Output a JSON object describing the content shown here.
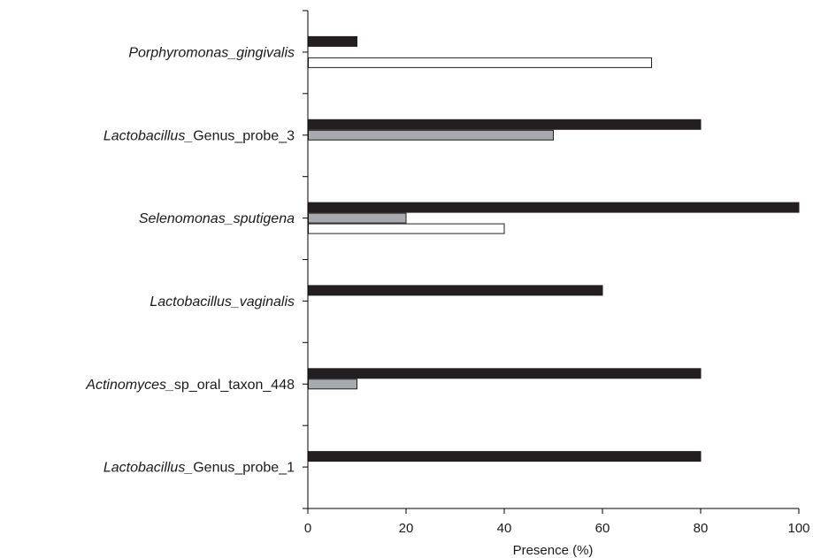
{
  "chart_data": {
    "type": "bar",
    "orientation": "horizontal",
    "xlabel": "Presence (%)",
    "xlim": [
      0,
      100
    ],
    "xticks": [
      "0",
      "20",
      "40",
      "60",
      "80",
      "100"
    ],
    "grid": false,
    "categories": [
      {
        "italic": "Porphyromonas_gingivalis",
        "plain": ""
      },
      {
        "italic": "Lactobacillus_",
        "plain": "Genus_probe_3"
      },
      {
        "italic": "Selenomonas_sputigena",
        "plain": ""
      },
      {
        "italic": "Lactobacillus_vaginalis",
        "plain": ""
      },
      {
        "italic": "Actinomyces_",
        "plain": "sp_oral_taxon_448"
      },
      {
        "italic": "Lactobacillus_",
        "plain": "Genus_probe_1"
      }
    ],
    "series": [
      {
        "color": "#231f20",
        "values": [
          10,
          80,
          100,
          60,
          80,
          80
        ]
      },
      {
        "color": "#a7a9ac",
        "values": [
          0,
          50,
          20,
          0,
          10,
          0
        ]
      },
      {
        "color": "#ffffff",
        "values": [
          70,
          0,
          40,
          0,
          0,
          0
        ]
      }
    ]
  }
}
